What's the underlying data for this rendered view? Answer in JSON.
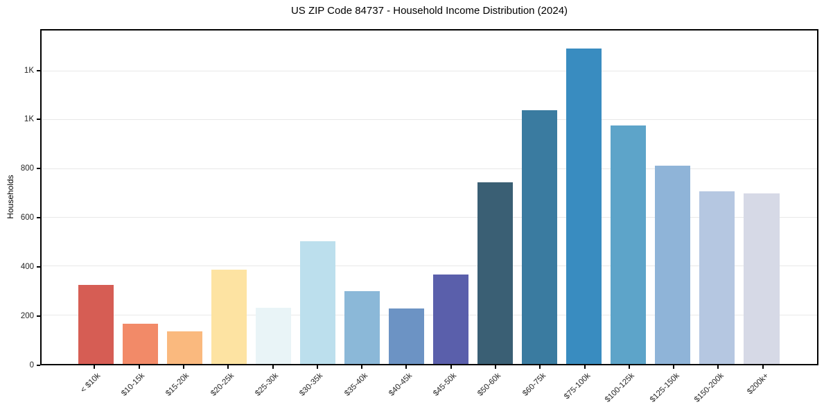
{
  "chart_data": {
    "type": "bar",
    "title": "US ZIP Code 84737 - Household Income Distribution (2024)",
    "xlabel": "",
    "ylabel": "Households",
    "categories": [
      "< $10k",
      "$10-15k",
      "$15-20k",
      "$20-25k",
      "$25-30k",
      "$30-35k",
      "$35-40k",
      "$40-45k",
      "$45-50k",
      "$50-60k",
      "$60-75k",
      "$75-100k",
      "$100-125k",
      "$125-150k",
      "$150-200k",
      "$200k+"
    ],
    "values": [
      325,
      164,
      135,
      387,
      231,
      503,
      299,
      228,
      367,
      744,
      1042,
      1294,
      978,
      814,
      708,
      701
    ],
    "bar_colors": [
      "#d65d54",
      "#f28a68",
      "#fab97e",
      "#fde3a2",
      "#e9f4f7",
      "#bcdfed",
      "#8bb8d8",
      "#6c93c4",
      "#5a5fab",
      "#3a5f74",
      "#3a7ba0",
      "#398cc0",
      "#5da4c9",
      "#8fb4d8",
      "#b5c7e1",
      "#d6d9e6"
    ],
    "ylim": [
      0,
      1368
    ],
    "y_ticks": [
      0,
      200,
      400,
      600,
      800,
      1000,
      1200
    ],
    "y_tick_labels": [
      "0",
      "200",
      "400",
      "600",
      "800",
      "1K",
      "1K"
    ],
    "grid": "horizontal",
    "legend": "none",
    "background_color": "#ffffff",
    "gridline_color": "#e8e8e8",
    "axis_color": "#000000",
    "tick_text_color": "#262626"
  }
}
